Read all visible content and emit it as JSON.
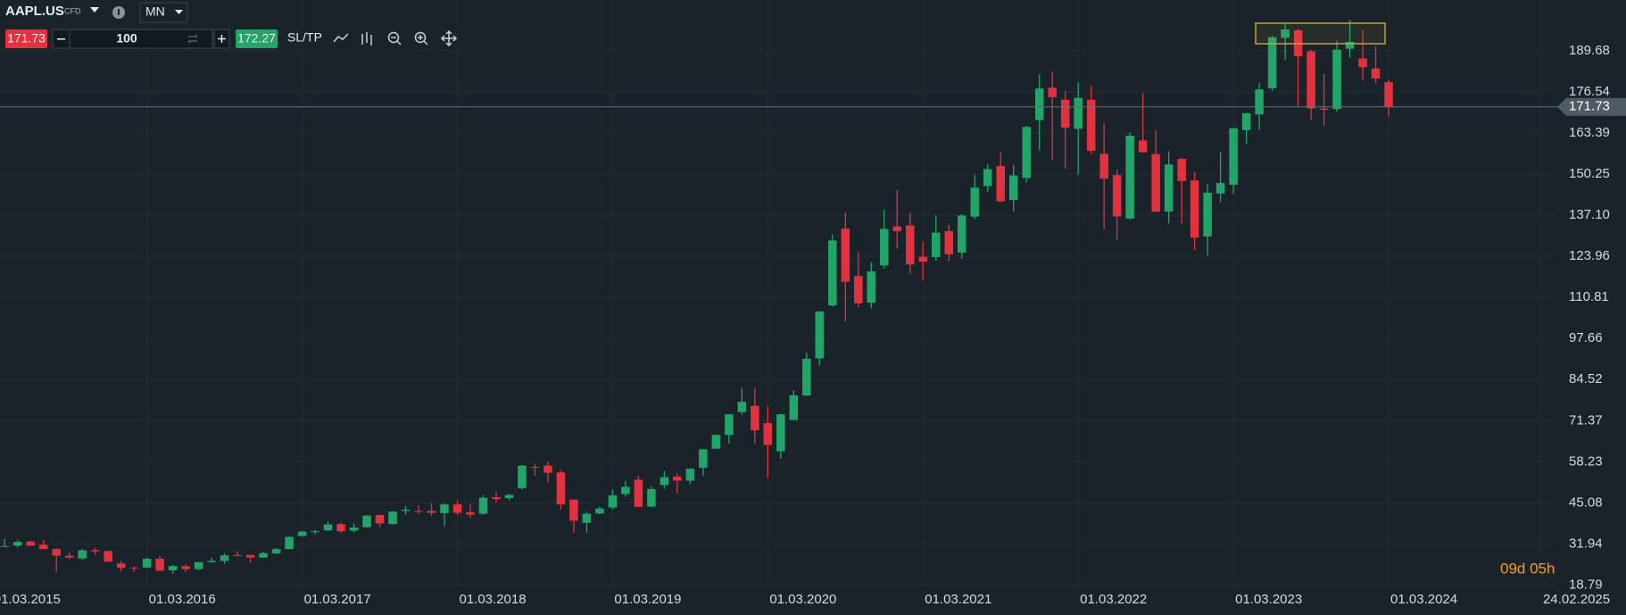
{
  "toolbar": {
    "symbol": "AAPL.US",
    "instrument_type": "CFD",
    "timeframe": "MN",
    "sell_price": "171.73",
    "volume": "100",
    "buy_price": "172.27",
    "sltp": "SL/TP"
  },
  "countdown": "09d 05h",
  "chart_data": {
    "type": "candlestick",
    "x": [
      1,
      2,
      3,
      4,
      5,
      6,
      7,
      8,
      9,
      10,
      11,
      12,
      13,
      14,
      15,
      16,
      17,
      18,
      19,
      20,
      21,
      22,
      23,
      24,
      25,
      26,
      27,
      28,
      29,
      30,
      31,
      32,
      33,
      34,
      35,
      36,
      37,
      38,
      39,
      40,
      41,
      42,
      43,
      44,
      45,
      46,
      47,
      48,
      49,
      50,
      51,
      52,
      53,
      54,
      55,
      56,
      57,
      58,
      59,
      60,
      61,
      62,
      63,
      64,
      65,
      66,
      67,
      68,
      69,
      70,
      71,
      72,
      73,
      74,
      75,
      76,
      77,
      78,
      79,
      80,
      81,
      82,
      83,
      84,
      85,
      86,
      87,
      88,
      89,
      90,
      91,
      92,
      93,
      94,
      95,
      96,
      97,
      98,
      99,
      100,
      101,
      102,
      103,
      104,
      105,
      106,
      107,
      108
    ],
    "open": [
      31.2,
      31.4,
      32.7,
      31.7,
      30.3,
      28.2,
      27.3,
      30.0,
      29.7,
      25.7,
      24.4,
      24.4,
      27.2,
      23.5,
      24.8,
      23.9,
      26.1,
      26.5,
      28.4,
      28.4,
      27.6,
      28.9,
      30.3,
      34.5,
      35.9,
      36.3,
      38.3,
      36.2,
      37.3,
      41.2,
      38.3,
      42.5,
      42.5,
      42.5,
      41.8,
      44.6,
      42.1,
      41.6,
      46.9,
      46.6,
      49.8,
      56.6,
      57.0,
      54.8,
      46.1,
      38.7,
      41.7,
      43.6,
      47.9,
      52.5,
      43.9,
      50.8,
      53.5,
      52.2,
      56.3,
      62.4,
      66.8,
      74.1,
      76.1,
      70.6,
      61.6,
      71.6,
      79.4,
      91.3,
      108.2,
      132.8,
      117.6,
      109.1,
      121.0,
      133.5,
      133.8,
      123.8,
      123.7,
      132.0,
      125.1,
      136.6,
      146.4,
      152.8,
      141.9,
      149.0,
      167.5,
      177.8,
      174.0,
      164.7,
      174.0,
      156.7,
      149.9,
      136.0,
      161.0,
      156.6,
      138.2,
      155.1,
      148.2,
      130.3,
      144.0,
      146.8,
      164.3,
      169.3,
      177.7,
      193.8,
      196.2,
      189.5,
      171.2,
      171.0,
      190.3,
      187.2,
      184.0,
      179.6
    ],
    "high": [
      33.6,
      33.2,
      33.0,
      33.2,
      30.6,
      29.2,
      30.3,
      30.7,
      29.8,
      26.5,
      24.7,
      27.6,
      28.1,
      25.2,
      25.5,
      26.1,
      27.6,
      29.0,
      29.7,
      28.5,
      29.5,
      30.6,
      34.4,
      36.1,
      36.4,
      39.2,
      38.8,
      38.5,
      41.2,
      41.3,
      42.4,
      44.1,
      44.3,
      45.0,
      45.0,
      45.9,
      44.7,
      47.6,
      48.5,
      48.0,
      57.2,
      57.4,
      58.4,
      55.6,
      46.2,
      42.2,
      43.9,
      49.4,
      52.1,
      53.8,
      50.4,
      55.3,
      54.5,
      56.1,
      62.4,
      67.0,
      73.5,
      81.9,
      81.8,
      76.0,
      73.6,
      81.1,
      93.1,
      106.4,
      131.0,
      138.0,
      125.4,
      122.0,
      138.8,
      145.1,
      137.9,
      128.7,
      137.1,
      134.1,
      137.4,
      150.0,
      153.5,
      157.3,
      153.2,
      165.7,
      182.1,
      182.9,
      176.7,
      179.6,
      178.5,
      166.5,
      151.7,
      163.6,
      176.2,
      164.3,
      157.5,
      155.5,
      150.9,
      147.2,
      157.4,
      165.0,
      169.9,
      179.4,
      194.5,
      198.2,
      196.7,
      190.0,
      182.3,
      192.9,
      199.6,
      196.4,
      191.1,
      180.5
    ],
    "low": [
      30.9,
      30.8,
      31.3,
      30.2,
      23.0,
      27.0,
      26.8,
      28.6,
      26.2,
      23.1,
      23.1,
      24.2,
      23.3,
      22.4,
      22.9,
      23.6,
      26.0,
      25.6,
      28.0,
      26.0,
      27.5,
      28.7,
      30.2,
      34.2,
      35.0,
      36.1,
      35.5,
      35.6,
      37.1,
      37.3,
      38.1,
      41.3,
      41.6,
      40.9,
      37.6,
      41.2,
      40.2,
      41.3,
      45.2,
      45.9,
      49.3,
      53.8,
      51.5,
      43.0,
      35.5,
      35.5,
      41.5,
      43.0,
      47.1,
      43.7,
      43.7,
      49.6,
      48.1,
      51.1,
      53.8,
      62.3,
      64.1,
      73.2,
      64.1,
      53.2,
      59.2,
      71.5,
      79.3,
      89.1,
      107.9,
      103.1,
      107.7,
      107.3,
      120.0,
      126.4,
      118.4,
      116.2,
      122.5,
      122.3,
      123.1,
      135.8,
      144.5,
      141.3,
      138.3,
      147.5,
      157.8,
      154.7,
      152.0,
      150.1,
      156.6,
      132.6,
      129.0,
      135.7,
      157.1,
      138.0,
      134.4,
      134.4,
      125.9,
      124.2,
      141.3,
      143.9,
      159.8,
      164.3,
      176.9,
      186.6,
      172.0,
      167.6,
      165.7,
      170.1,
      187.5,
      180.2,
      179.3,
      168.5
    ],
    "close": [
      31.3,
      32.6,
      31.4,
      30.3,
      28.2,
      27.6,
      29.9,
      29.6,
      26.3,
      24.3,
      24.2,
      27.2,
      23.4,
      24.9,
      23.9,
      26.1,
      26.5,
      28.3,
      28.3,
      27.6,
      29.0,
      30.3,
      34.2,
      35.9,
      36.0,
      38.2,
      36.0,
      37.2,
      41.0,
      38.5,
      42.3,
      42.9,
      42.3,
      41.9,
      44.6,
      41.9,
      41.3,
      46.7,
      46.3,
      47.6,
      57.0,
      56.4,
      54.7,
      44.6,
      39.4,
      41.6,
      43.3,
      47.5,
      50.2,
      43.8,
      49.5,
      53.3,
      52.2,
      56.0,
      62.2,
      66.8,
      73.4,
      77.4,
      68.3,
      63.6,
      73.4,
      79.5,
      91.2,
      106.3,
      129.0,
      115.8,
      108.9,
      119.1,
      132.7,
      132.0,
      121.3,
      122.2,
      131.5,
      124.6,
      137.0,
      145.9,
      151.8,
      141.5,
      149.8,
      165.3,
      177.6,
      174.8,
      165.1,
      174.6,
      157.7,
      148.8,
      136.7,
      162.5,
      157.2,
      138.2,
      153.3,
      148.0,
      129.9,
      144.3,
      147.4,
      164.9,
      169.7,
      177.3,
      194.0,
      196.5,
      187.9,
      171.2,
      170.8,
      190.0,
      192.5,
      184.4,
      180.8,
      171.73
    ],
    "up_color": "#22a568",
    "down_color": "#e3323f",
    "last_price": 171.73,
    "xlim": [
      0.64,
      120.9
    ],
    "xticks": [
      {
        "value": 0,
        "label": "01.03.2015"
      },
      {
        "value": 12,
        "label": "01.03.2016"
      },
      {
        "value": 24,
        "label": "01.03.2017"
      },
      {
        "value": 36,
        "label": "01.03.2018"
      },
      {
        "value": 48,
        "label": "01.03.2019"
      },
      {
        "value": 60,
        "label": "01.03.2020"
      },
      {
        "value": 72,
        "label": "01.03.2021"
      },
      {
        "value": 84,
        "label": "01.03.2022"
      },
      {
        "value": 96,
        "label": "01.03.2023"
      },
      {
        "value": 108,
        "label": "01.03.2024"
      },
      {
        "value": 119.8,
        "label": "24.02.2025"
      }
    ],
    "ylim": [
      17.5,
      205.9
    ],
    "yticks": [
      18.79,
      31.94,
      45.08,
      58.23,
      71.37,
      84.52,
      97.66,
      110.81,
      123.96,
      {
        "value": 137.1,
        "label": "137.10"
      },
      150.25,
      163.39,
      176.54,
      189.68
    ],
    "grid": true
  }
}
